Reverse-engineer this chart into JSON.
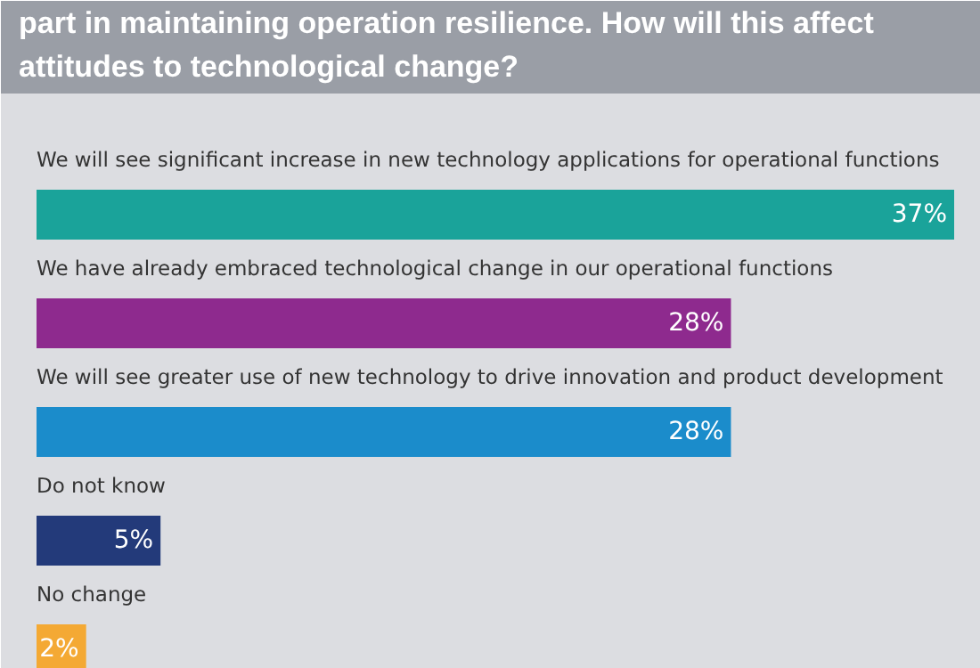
{
  "chart_data": {
    "type": "bar",
    "orientation": "horizontal",
    "title": "part in maintaining operation resilience. How will this affect\nattitudes to technological change?",
    "categories": [
      "We will see significant increase in new technology applications for operational functions",
      "We have already embraced technological change in our operational functions",
      "We will see greater use of new technology to drive innovation and product development",
      "Do not know",
      "No change"
    ],
    "values": [
      37,
      28,
      28,
      5,
      2
    ],
    "colors": [
      "#1aa39a",
      "#8e2a8e",
      "#1b8ccb",
      "#233a7a",
      "#f4a934"
    ],
    "value_labels": [
      "37%",
      "28%",
      "28%",
      "5%",
      "2%"
    ],
    "grid": false
  }
}
